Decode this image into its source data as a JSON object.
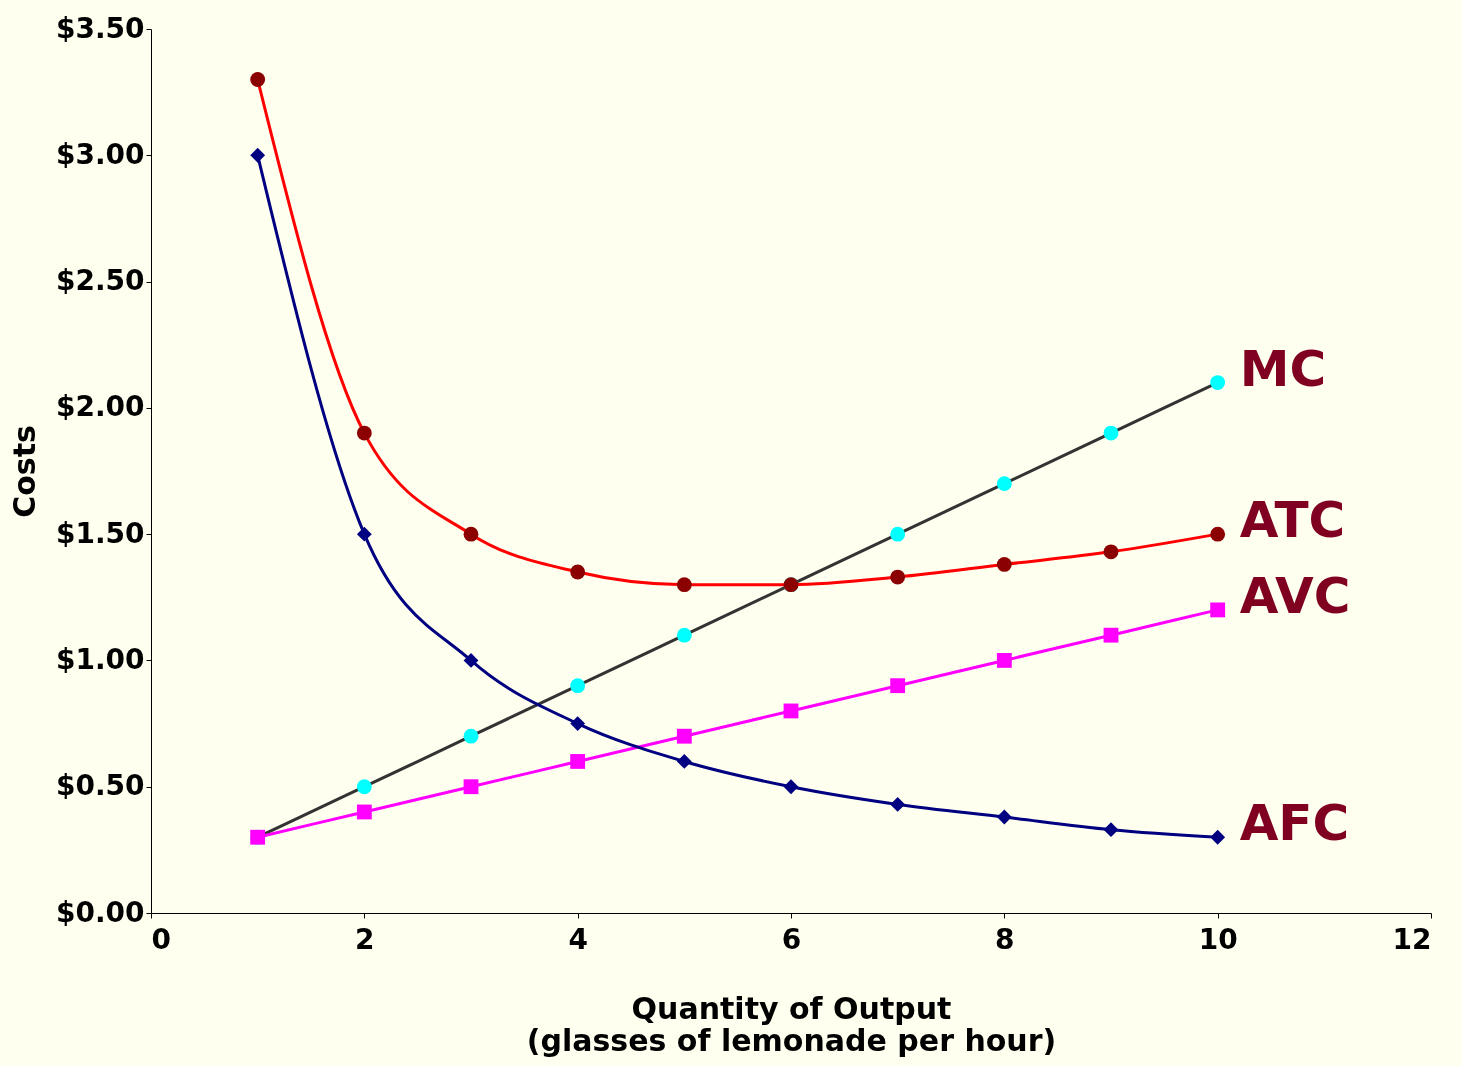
{
  "chart_data": {
    "type": "line",
    "xlabel": "Quantity of Output\n(glasses of lemonade per hour)",
    "ylabel": "Costs",
    "x": [
      1,
      2,
      3,
      4,
      5,
      6,
      7,
      8,
      9,
      10
    ],
    "series": [
      {
        "name": "MC",
        "color": "#333333",
        "colors": [
          "#00ffff",
          "#00ffff",
          "#00ffff",
          "#00ffff",
          "#00ffff",
          "#00ffff",
          "#00ffff",
          "#00ffff",
          "#00ffff",
          "#00ffff"
        ],
        "marker": "circle",
        "values": [
          0.3,
          0.5,
          0.7,
          0.9,
          1.1,
          1.3,
          1.5,
          1.7,
          1.9,
          2.1
        ]
      },
      {
        "name": "ATC",
        "color": "#ff0000",
        "colors": [
          "#8b0000",
          "#8b0000",
          "#8b0000",
          "#8b0000",
          "#8b0000",
          "#8b0000",
          "#8b0000",
          "#8b0000",
          "#8b0000",
          "#8b0000"
        ],
        "marker": "circle",
        "values": [
          3.3,
          1.9,
          1.5,
          1.35,
          1.3,
          1.3,
          1.33,
          1.38,
          1.43,
          1.5
        ]
      },
      {
        "name": "AVC",
        "color": "#ff00ff",
        "marker": "square",
        "values": [
          0.3,
          0.4,
          0.5,
          0.6,
          0.7,
          0.8,
          0.9,
          1.0,
          1.1,
          1.2
        ]
      },
      {
        "name": "AFC",
        "color": "#000080",
        "marker": "diamond",
        "values": [
          3.0,
          1.5,
          1.0,
          0.75,
          0.6,
          0.5,
          0.43,
          0.38,
          0.33,
          0.3
        ]
      }
    ],
    "xlim": [
      0,
      12
    ],
    "xticks": [
      0,
      2,
      4,
      6,
      8,
      10,
      12
    ],
    "ylim": [
      0,
      3.5
    ],
    "yticks": [
      {
        "value": 0,
        "label": "$0.00"
      },
      {
        "value": 0.5,
        "label": "$0.50"
      },
      {
        "value": 1,
        "label": "$1.00"
      },
      {
        "value": 1.5,
        "label": "$1.50"
      },
      {
        "value": 2,
        "label": "$2.00"
      },
      {
        "value": 2.5,
        "label": "$2.50"
      },
      {
        "value": 3,
        "label": "$3.00"
      },
      {
        "value": 3.5,
        "label": "$3.50"
      }
    ],
    "grid": false,
    "line_style": "solid"
  }
}
